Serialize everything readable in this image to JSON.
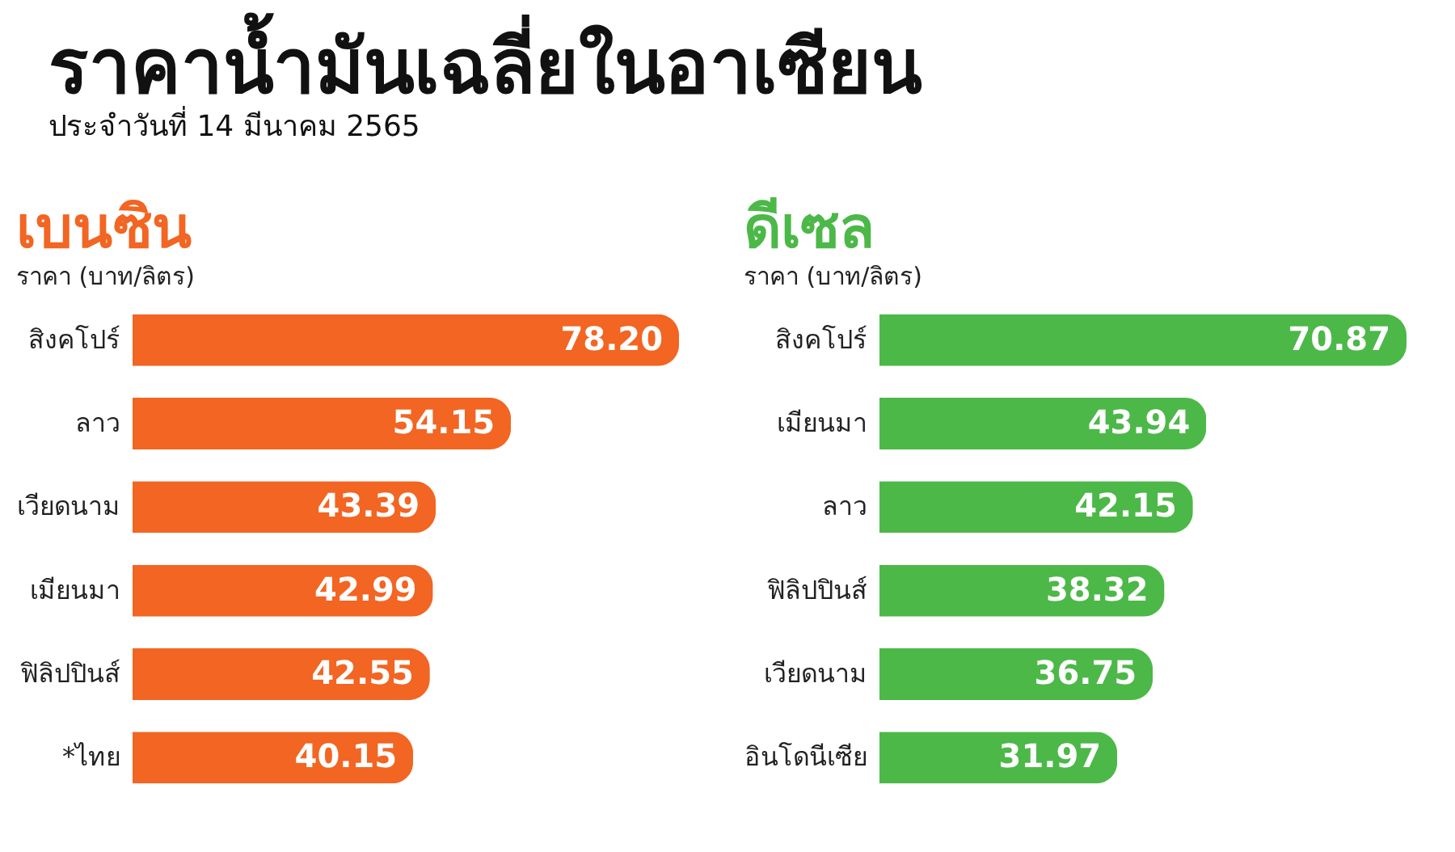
{
  "chart_data": [
    {
      "type": "other",
      "title": "ราคาน้ำมันเฉลี่ยในอาเซียน",
      "subtitle": "ประจำวันที่ 14 มีนาคม 2565"
    },
    {
      "type": "bar",
      "orientation": "horizontal",
      "title": "เบนซิน",
      "subtitle": "ราคา (บาท/ลิตร)",
      "categories": [
        "สิงคโปร์",
        "ลาว",
        "เวียดนาม",
        "เมียนมา",
        "ฟิลิปปินส์",
        "*ไทย"
      ],
      "values": [
        78.2,
        54.15,
        43.39,
        42.99,
        42.55,
        40.15
      ],
      "value_labels": [
        "78.20",
        "54.15",
        "43.39",
        "42.99",
        "42.55",
        "40.15"
      ],
      "color": "#f26522",
      "tick_labels": "y"
    },
    {
      "type": "bar",
      "orientation": "horizontal",
      "title": "ดีเซล",
      "subtitle": "ราคา (บาท/ลิตร)",
      "categories": [
        "สิงคโปร์",
        "เมียนมา",
        "ลาว",
        "ฟิลิปปินส์",
        "เวียดนาม",
        "อินโดนีเซีย"
      ],
      "values": [
        70.87,
        43.94,
        42.15,
        38.32,
        36.75,
        31.97
      ],
      "value_labels": [
        "70.87",
        "43.94",
        "42.15",
        "38.32",
        "36.75",
        "31.97"
      ],
      "color": "#4cb848",
      "tick_labels": "y"
    }
  ]
}
